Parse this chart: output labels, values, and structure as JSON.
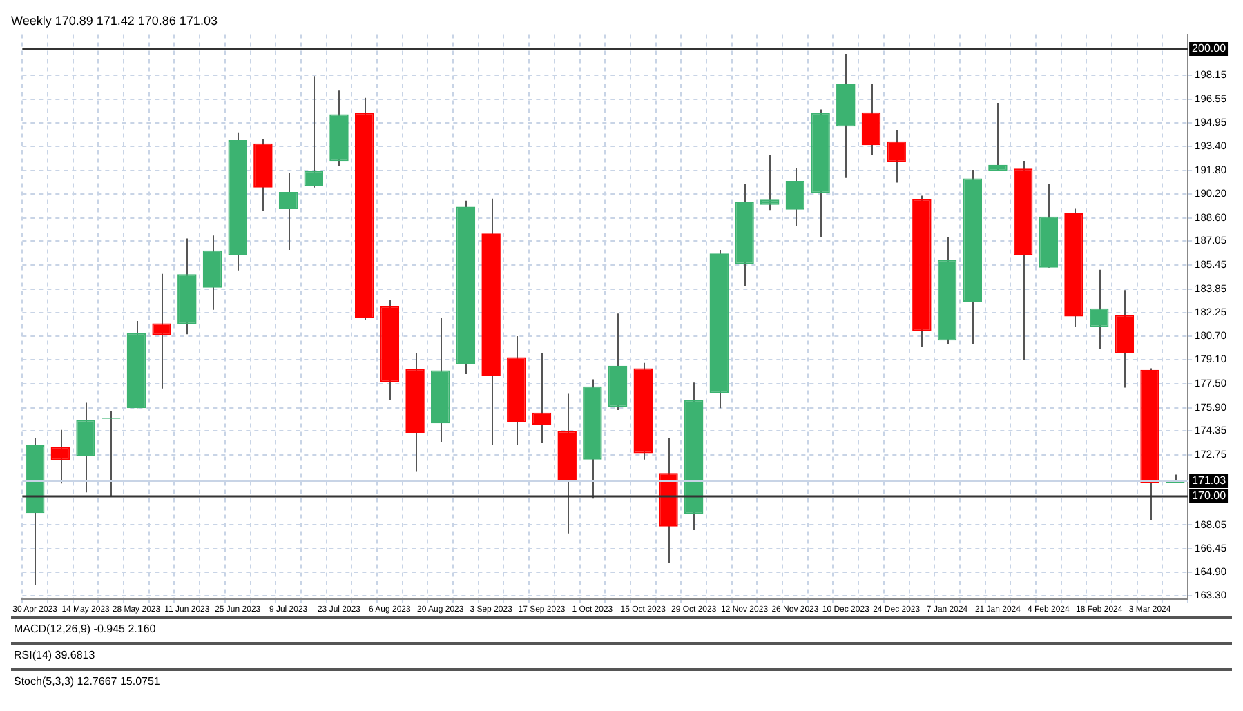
{
  "chart_data": {
    "type": "candlestick",
    "title": "Weekly 170.89 171.42 170.86 171.03",
    "categories": [
      "30 Apr 2023",
      null,
      "14 May 2023",
      null,
      "28 May 2023",
      null,
      "11 Jun 2023",
      null,
      "25 Jun 2023",
      null,
      "9 Jul 2023",
      null,
      "23 Jul 2023",
      null,
      "6 Aug 2023",
      null,
      "20 Aug 2023",
      null,
      "3 Sep 2023",
      null,
      "17 Sep 2023",
      null,
      "1 Oct 2023",
      null,
      "15 Oct 2023",
      null,
      "29 Oct 2023",
      null,
      "12 Nov 2023",
      null,
      "26 Nov 2023",
      null,
      "10 Dec 2023",
      null,
      "24 Dec 2023",
      null,
      "7 Jan 2024",
      null,
      "21 Jan 2024",
      null,
      "4 Feb 2024",
      null,
      "18 Feb 2024",
      null,
      "3 Mar 2024",
      null
    ],
    "ohlc": [
      [
        168.85,
        173.9,
        164.04,
        173.39
      ],
      [
        173.26,
        174.42,
        170.83,
        172.38
      ],
      [
        172.65,
        176.23,
        170.23,
        175.07
      ],
      [
        175.15,
        175.68,
        169.96,
        175.2
      ],
      [
        175.87,
        181.7,
        175.87,
        180.88
      ],
      [
        181.54,
        184.86,
        177.19,
        180.77
      ],
      [
        181.48,
        187.23,
        180.82,
        184.84
      ],
      [
        183.93,
        187.42,
        182.45,
        186.43
      ],
      [
        186.1,
        194.33,
        185.09,
        193.81
      ],
      [
        193.59,
        193.86,
        189.07,
        190.64
      ],
      [
        189.19,
        191.61,
        186.46,
        190.34
      ],
      [
        190.72,
        198.1,
        190.64,
        191.77
      ],
      [
        192.41,
        197.13,
        192.1,
        195.54
      ],
      [
        195.65,
        196.64,
        181.8,
        181.89
      ],
      [
        182.69,
        183.1,
        176.42,
        177.63
      ],
      [
        178.48,
        179.58,
        171.61,
        174.22
      ],
      [
        174.85,
        181.89,
        173.59,
        178.4
      ],
      [
        178.79,
        189.76,
        178.15,
        189.35
      ],
      [
        187.56,
        189.9,
        173.39,
        178.05
      ],
      [
        179.28,
        180.69,
        173.39,
        174.91
      ],
      [
        175.57,
        179.58,
        173.53,
        174.77
      ],
      [
        174.33,
        176.83,
        167.48,
        171.03
      ],
      [
        172.43,
        177.8,
        169.82,
        177.33
      ],
      [
        175.95,
        182.2,
        175.74,
        178.71
      ],
      [
        178.54,
        178.9,
        172.43,
        172.85
      ],
      [
        171.53,
        173.86,
        165.5,
        167.94
      ],
      [
        168.8,
        177.58,
        167.7,
        176.42
      ],
      [
        176.89,
        186.46,
        175.87,
        186.22
      ],
      [
        185.52,
        190.86,
        184.04,
        189.7
      ],
      [
        189.48,
        192.84,
        189.13,
        189.82
      ],
      [
        189.15,
        191.96,
        188.03,
        191.08
      ],
      [
        190.26,
        195.87,
        187.29,
        195.62
      ],
      [
        194.72,
        199.59,
        191.28,
        197.6
      ],
      [
        195.67,
        197.6,
        192.79,
        193.48
      ],
      [
        193.73,
        194.49,
        190.97,
        192.37
      ],
      [
        189.85,
        190.09,
        179.99,
        181.02
      ],
      [
        180.4,
        187.29,
        180.13,
        185.8
      ],
      [
        183.0,
        191.83,
        180.13,
        191.25
      ],
      [
        191.77,
        196.31,
        191.77,
        192.16
      ],
      [
        191.91,
        192.43,
        179.09,
        186.1
      ],
      [
        185.27,
        190.86,
        185.27,
        188.69
      ],
      [
        188.91,
        189.21,
        181.29,
        182.0
      ],
      [
        181.31,
        185.14,
        179.86,
        182.55
      ],
      [
        182.11,
        183.77,
        177.25,
        179.53
      ],
      [
        178.43,
        178.54,
        168.36,
        170.87
      ],
      [
        170.89,
        171.42,
        170.86,
        171.03
      ]
    ],
    "colors": [
      "#3cb371",
      "#ff0000",
      "#3cb371",
      "#3cb371",
      "#3cb371",
      "#ff0000",
      "#3cb371",
      "#3cb371",
      "#3cb371",
      "#ff0000",
      "#3cb371",
      "#3cb371",
      "#3cb371",
      "#ff0000",
      "#ff0000",
      "#ff0000",
      "#3cb371",
      "#3cb371",
      "#ff0000",
      "#ff0000",
      "#ff0000",
      "#ff0000",
      "#3cb371",
      "#3cb371",
      "#ff0000",
      "#ff0000",
      "#3cb371",
      "#3cb371",
      "#3cb371",
      "#3cb371",
      "#3cb371",
      "#3cb371",
      "#3cb371",
      "#ff0000",
      "#ff0000",
      "#ff0000",
      "#3cb371",
      "#3cb371",
      "#3cb371",
      "#ff0000",
      "#3cb371",
      "#ff0000",
      "#3cb371",
      "#ff0000",
      "#ff0000",
      "#3cb371"
    ],
    "ylim": [
      163.1,
      200.9
    ],
    "yticks": [
      {
        "value": 163.3,
        "label": "163.30"
      },
      {
        "value": 164.9,
        "label": "164.90"
      },
      166.45,
      168.05,
      172.75,
      174.35,
      {
        "value": 175.9,
        "label": "175.90"
      },
      {
        "value": 177.5,
        "label": "177.50"
      },
      {
        "value": 179.1,
        "label": "179.10"
      },
      {
        "value": 180.7,
        "label": "180.70"
      },
      182.25,
      183.85,
      185.45,
      187.05,
      {
        "value": 188.6,
        "label": "188.60"
      },
      {
        "value": 190.2,
        "label": "190.20"
      },
      {
        "value": 191.8,
        "label": "191.80"
      },
      {
        "value": 193.4,
        "label": "193.40"
      },
      194.95,
      196.55,
      198.15
    ],
    "ref_lines": [
      {
        "axis": "y",
        "value": 200,
        "label": "200.00",
        "color": "#333333"
      },
      {
        "axis": "y",
        "value": 170,
        "label": "170.00",
        "color": "#333333"
      },
      {
        "axis": "y",
        "value": 171.03,
        "label": "171.03",
        "color": "#c8d4e6"
      }
    ],
    "annotations": [
      "MACD(12,26,9) -0.945 2.160",
      "RSI(14) 39.6813",
      "Stoch(5,3,3) 12.7667 15.0751"
    ],
    "grid": true,
    "legend": false
  }
}
